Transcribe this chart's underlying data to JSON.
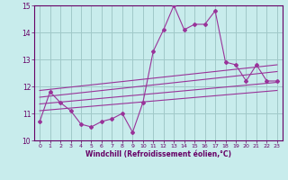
{
  "xlabel": "Windchill (Refroidissement éolien,°C)",
  "bg_color": "#c8ecec",
  "grid_color": "#a0c8c8",
  "line_color": "#993399",
  "xlim": [
    -0.5,
    23.5
  ],
  "ylim": [
    10,
    15
  ],
  "yticks": [
    10,
    11,
    12,
    13,
    14,
    15
  ],
  "xticks": [
    0,
    1,
    2,
    3,
    4,
    5,
    6,
    7,
    8,
    9,
    10,
    11,
    12,
    13,
    14,
    15,
    16,
    17,
    18,
    19,
    20,
    21,
    22,
    23
  ],
  "main_x": [
    0,
    1,
    2,
    3,
    4,
    5,
    6,
    7,
    8,
    9,
    10,
    11,
    12,
    13,
    14,
    15,
    16,
    17,
    18,
    19,
    20,
    21,
    22,
    23
  ],
  "main_y": [
    10.7,
    11.8,
    11.4,
    11.1,
    10.6,
    10.5,
    10.7,
    10.8,
    11.0,
    10.3,
    11.4,
    13.3,
    14.1,
    15.0,
    14.1,
    14.3,
    14.3,
    14.8,
    12.9,
    12.8,
    12.2,
    12.8,
    12.2,
    12.2
  ],
  "reg_lines": [
    [
      11.1,
      11.85
    ],
    [
      11.35,
      12.15
    ],
    [
      11.6,
      12.55
    ],
    [
      11.85,
      12.8
    ]
  ]
}
